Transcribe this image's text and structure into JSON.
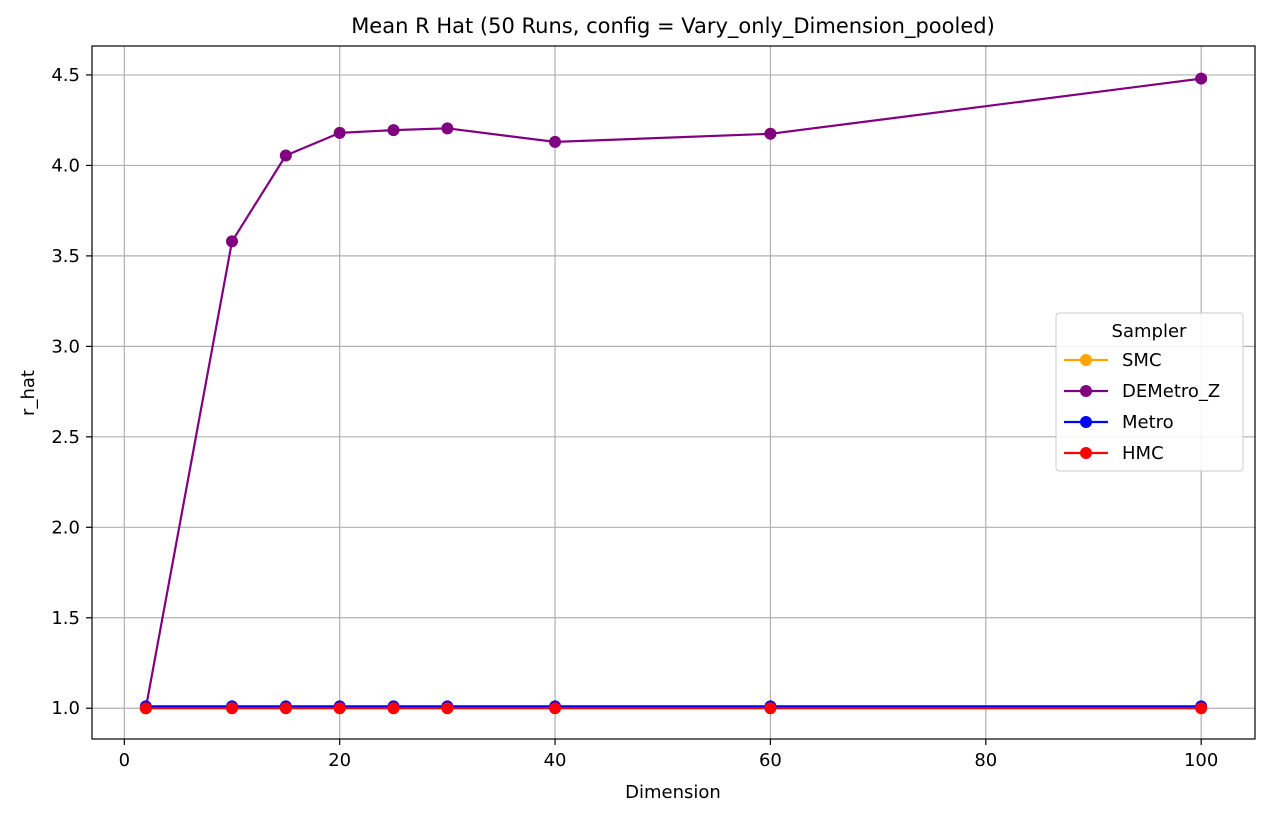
{
  "chart_data": {
    "type": "line",
    "title": "Mean R Hat (50 Runs, config = Vary_only_Dimension_pooled)",
    "xlabel": "Dimension",
    "ylabel": "r_hat",
    "xlim": [
      -3,
      105
    ],
    "ylim": [
      0.83,
      4.66
    ],
    "x_ticks": [
      0,
      20,
      40,
      60,
      80,
      100
    ],
    "y_ticks": [
      1.0,
      1.5,
      2.0,
      2.5,
      3.0,
      3.5,
      4.0,
      4.5
    ],
    "x_tick_labels": [
      "0",
      "20",
      "40",
      "60",
      "80",
      "100"
    ],
    "y_tick_labels": [
      "1.0",
      "1.5",
      "2.0",
      "2.5",
      "3.0",
      "3.5",
      "4.0",
      "4.5"
    ],
    "grid": true,
    "legend": {
      "title": "Sampler",
      "placement": "center-right"
    },
    "x": [
      2,
      10,
      15,
      20,
      25,
      30,
      40,
      60,
      100
    ],
    "series": [
      {
        "name": "SMC",
        "color": "#FFA500",
        "values": [
          1.005,
          1.005,
          1.005,
          1.005,
          1.005,
          1.005,
          1.005,
          1.005,
          1.005
        ]
      },
      {
        "name": "DEMetro_Z",
        "color": "#800080",
        "values": [
          1.0,
          3.58,
          4.055,
          4.18,
          4.195,
          4.205,
          4.13,
          4.175,
          4.48
        ]
      },
      {
        "name": "Metro",
        "color": "#0000FF",
        "values": [
          1.01,
          1.01,
          1.01,
          1.01,
          1.01,
          1.01,
          1.01,
          1.01,
          1.01
        ]
      },
      {
        "name": "HMC",
        "color": "#FF0000",
        "values": [
          1.0,
          1.0,
          1.0,
          1.0,
          1.0,
          1.0,
          1.0,
          1.0,
          1.0
        ]
      }
    ]
  }
}
